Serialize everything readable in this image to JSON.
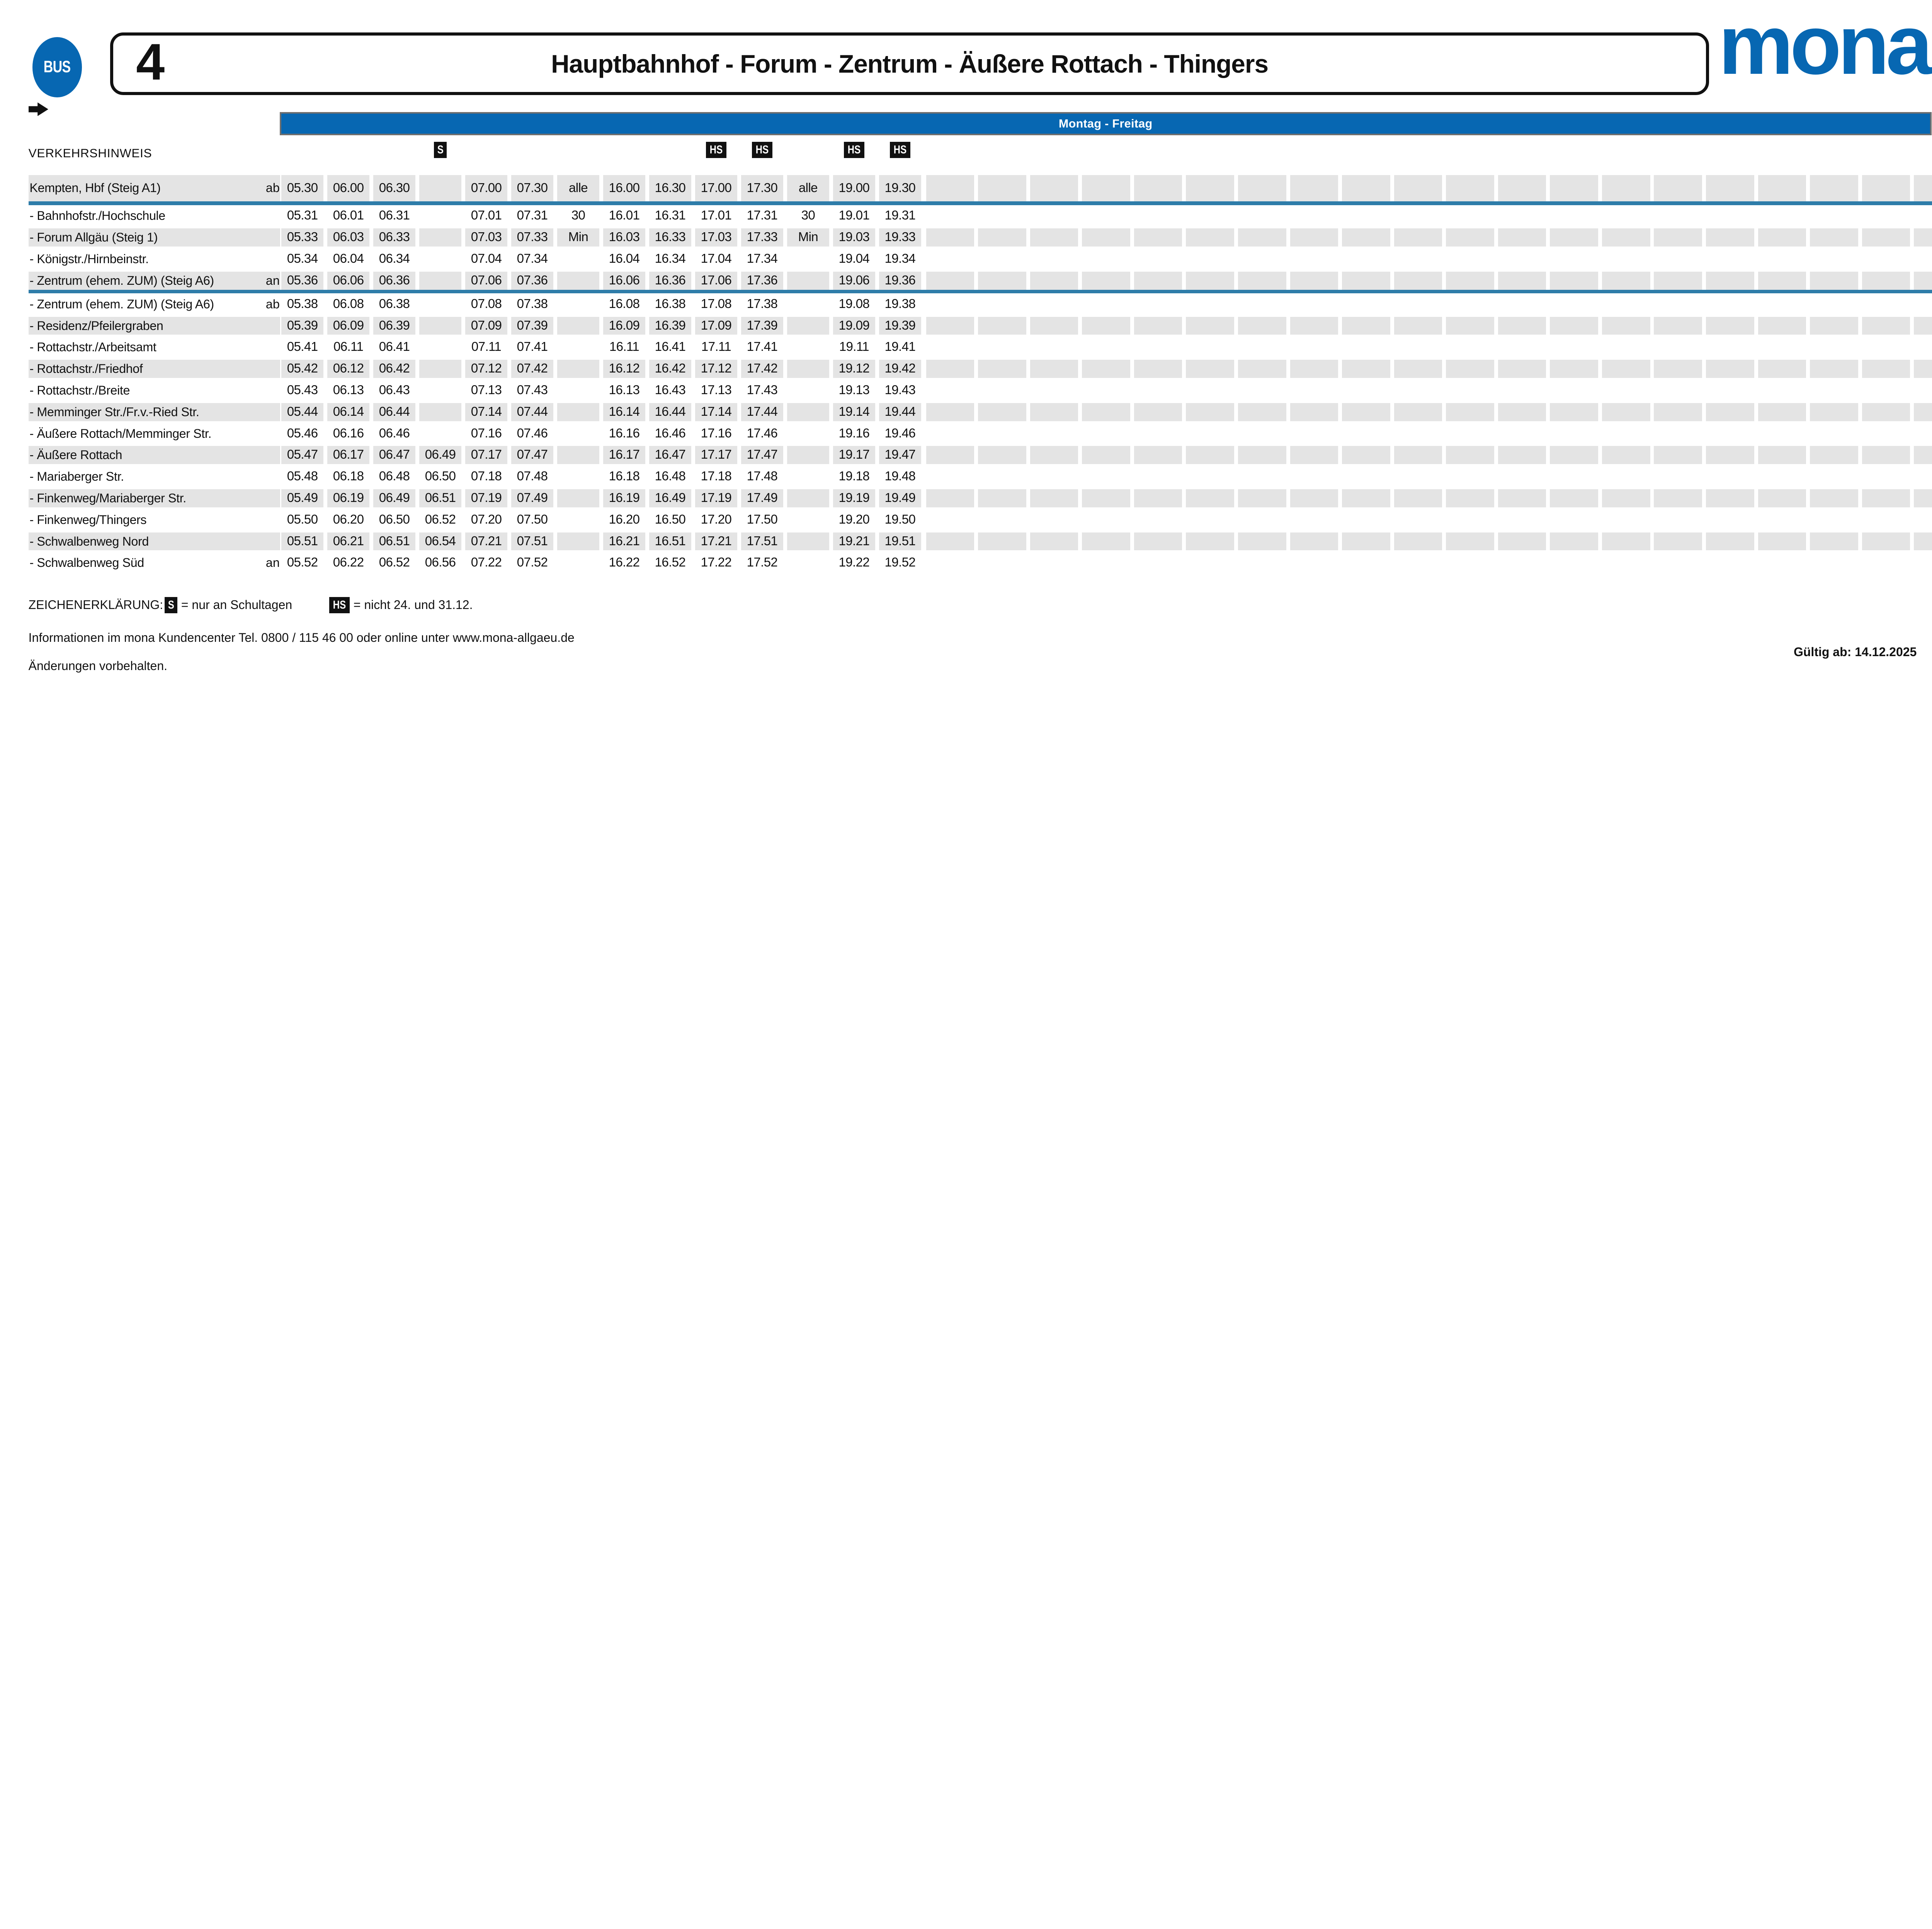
{
  "header": {
    "bus_badge": "BUS",
    "line_number": "4",
    "title": "Hauptbahnhof - Forum - Zentrum - Äußere Rottach - Thingers",
    "brand": "mona"
  },
  "day_band": {
    "label": "Montag - Freitag"
  },
  "verkehrshinweis": {
    "label": "VERKEHRSHINWEIS",
    "markers": [
      {
        "symbol": "S",
        "column": 4
      },
      {
        "symbol": "HS",
        "column": 10
      },
      {
        "symbol": "HS",
        "column": 11
      },
      {
        "symbol": "HS",
        "column": 13
      },
      {
        "symbol": "HS",
        "column": 14
      }
    ]
  },
  "timetable": {
    "num_time_columns": 14,
    "num_trailing_empty_columns": 20,
    "separators_after_rows": [
      0,
      4
    ],
    "rows": [
      {
        "name": "Kempten, Hbf (Steig A1)",
        "note": "ab",
        "times": [
          "05.30",
          "06.00",
          "06.30",
          "",
          "07.00",
          "07.30",
          "alle",
          "16.00",
          "16.30",
          "17.00",
          "17.30",
          "alle",
          "19.00",
          "19.30"
        ]
      },
      {
        "name": "- Bahnhofstr./Hochschule",
        "note": "",
        "times": [
          "05.31",
          "06.01",
          "06.31",
          "",
          "07.01",
          "07.31",
          "30",
          "16.01",
          "16.31",
          "17.01",
          "17.31",
          "30",
          "19.01",
          "19.31"
        ]
      },
      {
        "name": "- Forum Allgäu (Steig 1)",
        "note": "",
        "times": [
          "05.33",
          "06.03",
          "06.33",
          "",
          "07.03",
          "07.33",
          "Min",
          "16.03",
          "16.33",
          "17.03",
          "17.33",
          "Min",
          "19.03",
          "19.33"
        ]
      },
      {
        "name": "- Königstr./Hirnbeinstr.",
        "note": "",
        "times": [
          "05.34",
          "06.04",
          "06.34",
          "",
          "07.04",
          "07.34",
          "",
          "16.04",
          "16.34",
          "17.04",
          "17.34",
          "",
          "19.04",
          "19.34"
        ]
      },
      {
        "name": "- Zentrum (ehem. ZUM) (Steig A6)",
        "note": "an",
        "times": [
          "05.36",
          "06.06",
          "06.36",
          "",
          "07.06",
          "07.36",
          "",
          "16.06",
          "16.36",
          "17.06",
          "17.36",
          "",
          "19.06",
          "19.36"
        ]
      },
      {
        "name": "- Zentrum (ehem. ZUM) (Steig A6)",
        "note": "ab",
        "times": [
          "05.38",
          "06.08",
          "06.38",
          "",
          "07.08",
          "07.38",
          "",
          "16.08",
          "16.38",
          "17.08",
          "17.38",
          "",
          "19.08",
          "19.38"
        ]
      },
      {
        "name": "- Residenz/Pfeilergraben",
        "note": "",
        "times": [
          "05.39",
          "06.09",
          "06.39",
          "",
          "07.09",
          "07.39",
          "",
          "16.09",
          "16.39",
          "17.09",
          "17.39",
          "",
          "19.09",
          "19.39"
        ]
      },
      {
        "name": "- Rottachstr./Arbeitsamt",
        "note": "",
        "times": [
          "05.41",
          "06.11",
          "06.41",
          "",
          "07.11",
          "07.41",
          "",
          "16.11",
          "16.41",
          "17.11",
          "17.41",
          "",
          "19.11",
          "19.41"
        ]
      },
      {
        "name": "- Rottachstr./Friedhof",
        "note": "",
        "times": [
          "05.42",
          "06.12",
          "06.42",
          "",
          "07.12",
          "07.42",
          "",
          "16.12",
          "16.42",
          "17.12",
          "17.42",
          "",
          "19.12",
          "19.42"
        ]
      },
      {
        "name": "- Rottachstr./Breite",
        "note": "",
        "times": [
          "05.43",
          "06.13",
          "06.43",
          "",
          "07.13",
          "07.43",
          "",
          "16.13",
          "16.43",
          "17.13",
          "17.43",
          "",
          "19.13",
          "19.43"
        ]
      },
      {
        "name": "- Memminger Str./Fr.v.-Ried Str.",
        "note": "",
        "times": [
          "05.44",
          "06.14",
          "06.44",
          "",
          "07.14",
          "07.44",
          "",
          "16.14",
          "16.44",
          "17.14",
          "17.44",
          "",
          "19.14",
          "19.44"
        ]
      },
      {
        "name": "- Äußere Rottach/Memminger Str.",
        "note": "",
        "times": [
          "05.46",
          "06.16",
          "06.46",
          "",
          "07.16",
          "07.46",
          "",
          "16.16",
          "16.46",
          "17.16",
          "17.46",
          "",
          "19.16",
          "19.46"
        ]
      },
      {
        "name": "- Äußere Rottach",
        "note": "",
        "times": [
          "05.47",
          "06.17",
          "06.47",
          "06.49",
          "07.17",
          "07.47",
          "",
          "16.17",
          "16.47",
          "17.17",
          "17.47",
          "",
          "19.17",
          "19.47"
        ]
      },
      {
        "name": "- Mariaberger Str.",
        "note": "",
        "times": [
          "05.48",
          "06.18",
          "06.48",
          "06.50",
          "07.18",
          "07.48",
          "",
          "16.18",
          "16.48",
          "17.18",
          "17.48",
          "",
          "19.18",
          "19.48"
        ]
      },
      {
        "name": "- Finkenweg/Mariaberger Str.",
        "note": "",
        "times": [
          "05.49",
          "06.19",
          "06.49",
          "06.51",
          "07.19",
          "07.49",
          "",
          "16.19",
          "16.49",
          "17.19",
          "17.49",
          "",
          "19.19",
          "19.49"
        ]
      },
      {
        "name": "- Finkenweg/Thingers",
        "note": "",
        "times": [
          "05.50",
          "06.20",
          "06.50",
          "06.52",
          "07.20",
          "07.50",
          "",
          "16.20",
          "16.50",
          "17.20",
          "17.50",
          "",
          "19.20",
          "19.50"
        ]
      },
      {
        "name": "- Schwalbenweg Nord",
        "note": "",
        "times": [
          "05.51",
          "06.21",
          "06.51",
          "06.54",
          "07.21",
          "07.51",
          "",
          "16.21",
          "16.51",
          "17.21",
          "17.51",
          "",
          "19.21",
          "19.51"
        ]
      },
      {
        "name": "- Schwalbenweg Süd",
        "note": "an",
        "times": [
          "05.52",
          "06.22",
          "06.52",
          "06.56",
          "07.22",
          "07.52",
          "",
          "16.22",
          "16.52",
          "17.22",
          "17.52",
          "",
          "19.22",
          "19.52"
        ]
      }
    ]
  },
  "legend": {
    "label": "ZEICHENERKLÄRUNG:",
    "items": [
      {
        "symbol": "S",
        "text": "= nur an Schultagen"
      },
      {
        "symbol": "HS",
        "text": "= nicht 24. und 31.12."
      }
    ]
  },
  "footer": {
    "info": "Informationen im mona Kundencenter Tel. 0800 / 115 46 00 oder online unter www.mona-allgaeu.de",
    "note": "Änderungen vorbehalten.",
    "valid_from": "Gültig ab: 14.12.2025"
  },
  "colors": {
    "brand_blue": "#0767b2",
    "separator_blue": "#2e7ca9",
    "row_gray": "#e4e4e4",
    "border_gray": "#6f6f6f"
  }
}
